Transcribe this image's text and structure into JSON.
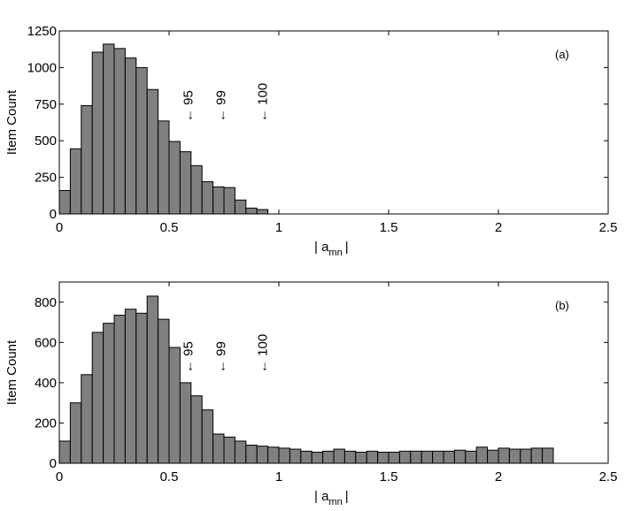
{
  "chart_data": [
    {
      "type": "bar",
      "panel_label": "(a)",
      "xlabel": "| a",
      "xlabel_sub": "mn",
      "xlabel_end": "|",
      "ylabel": "Item Count",
      "xlim": [
        0,
        2.5
      ],
      "ylim": [
        0,
        1250
      ],
      "xticks": [
        0,
        0.5,
        1,
        1.5,
        2,
        2.5
      ],
      "xtick_labels": [
        "0",
        "0.5",
        "1",
        "1.5",
        "2",
        "2.5"
      ],
      "yticks": [
        0,
        250,
        500,
        750,
        1000,
        1250
      ],
      "ytick_labels": [
        "0",
        "250",
        "500",
        "750",
        "1000",
        "1250"
      ],
      "bin_width": 0.05,
      "bin_starts": [
        0,
        0.05,
        0.1,
        0.15,
        0.2,
        0.25,
        0.3,
        0.35,
        0.4,
        0.45,
        0.5,
        0.55,
        0.6,
        0.65,
        0.7,
        0.75,
        0.8,
        0.85,
        0.9
      ],
      "values": [
        160,
        445,
        740,
        1105,
        1160,
        1130,
        1065,
        1000,
        850,
        635,
        495,
        425,
        330,
        220,
        185,
        180,
        95,
        40,
        30
      ],
      "bar_color": "#808080",
      "annotations": [
        {
          "text": "← 95",
          "x": 0.61
        },
        {
          "text": "← 99",
          "x": 0.76
        },
        {
          "text": "← 100",
          "x": 0.95
        }
      ]
    },
    {
      "type": "bar",
      "panel_label": "(b)",
      "xlabel": "| a",
      "xlabel_sub": "mn",
      "xlabel_end": "|",
      "ylabel": "Item Count",
      "xlim": [
        0,
        2.5
      ],
      "ylim": [
        0,
        900
      ],
      "xticks": [
        0,
        0.5,
        1,
        1.5,
        2,
        2.5
      ],
      "xtick_labels": [
        "0",
        "0.5",
        "1",
        "1.5",
        "2",
        "2.5"
      ],
      "yticks": [
        0,
        200,
        400,
        600,
        800
      ],
      "ytick_labels": [
        "0",
        "200",
        "400",
        "600",
        "800"
      ],
      "bin_width": 0.05,
      "bin_starts": [
        0,
        0.05,
        0.1,
        0.15,
        0.2,
        0.25,
        0.3,
        0.35,
        0.4,
        0.45,
        0.5,
        0.55,
        0.6,
        0.65,
        0.7,
        0.75,
        0.8,
        0.85,
        0.9,
        0.95,
        1.0,
        1.05,
        1.1,
        1.15,
        1.2,
        1.25,
        1.3,
        1.35,
        1.4,
        1.45,
        1.5,
        1.55,
        1.6,
        1.65,
        1.7,
        1.75,
        1.8,
        1.85,
        1.9,
        1.95,
        2.0,
        2.05,
        2.1,
        2.15,
        2.2
      ],
      "values": [
        110,
        300,
        440,
        650,
        695,
        735,
        765,
        745,
        830,
        715,
        575,
        400,
        335,
        265,
        145,
        130,
        110,
        90,
        85,
        80,
        75,
        70,
        60,
        55,
        60,
        70,
        60,
        55,
        60,
        55,
        55,
        60,
        60,
        60,
        60,
        60,
        65,
        60,
        80,
        65,
        75,
        70,
        70,
        75,
        75
      ],
      "bar_color": "#808080",
      "annotations": [
        {
          "text": "← 95",
          "x": 0.61
        },
        {
          "text": "← 99",
          "x": 0.76
        },
        {
          "text": "← 100",
          "x": 0.95
        }
      ]
    }
  ]
}
